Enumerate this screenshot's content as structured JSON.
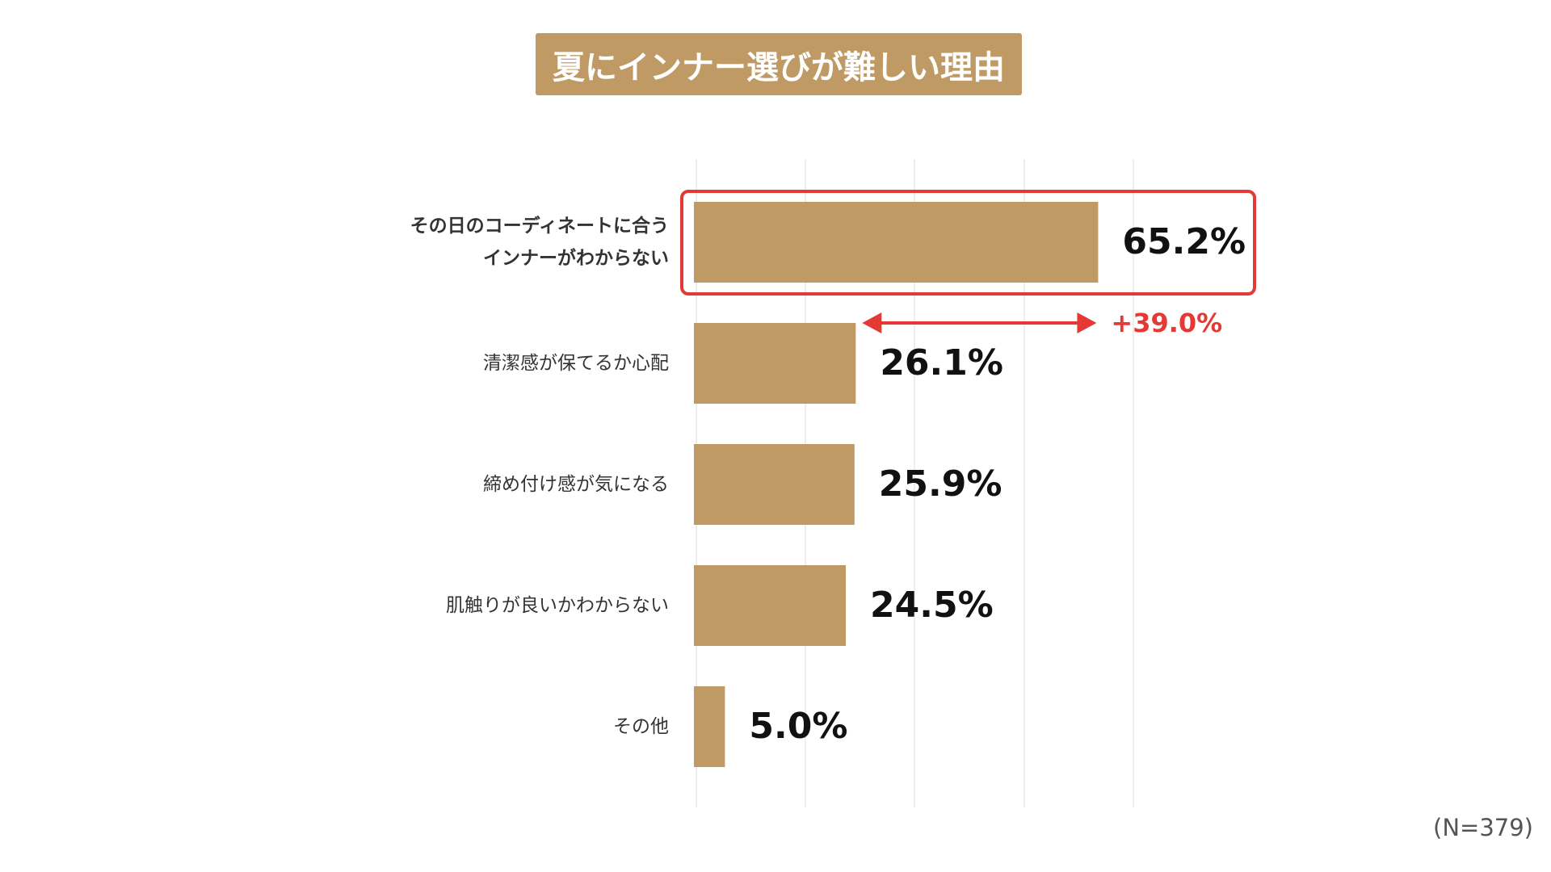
{
  "chart_data": {
    "type": "barh",
    "title": "夏にインナー選びが難しい理由",
    "categories": [
      "その日のコーディネートに合う\nインナーがわからない",
      "清潔感が保てるか心配",
      "締め付け感が気になる",
      "肌触りが良いかわからない",
      "その他"
    ],
    "values": [
      65.2,
      26.1,
      25.9,
      24.5,
      5.0
    ],
    "value_labels": [
      "65.2%",
      "26.1%",
      "25.9%",
      "24.5%",
      "5.0%"
    ],
    "color": "#bf9a65",
    "xlim": [
      0,
      80
    ],
    "annotation": "+39.0%",
    "annotation_color": "#e53935",
    "note": "(N=379)"
  }
}
